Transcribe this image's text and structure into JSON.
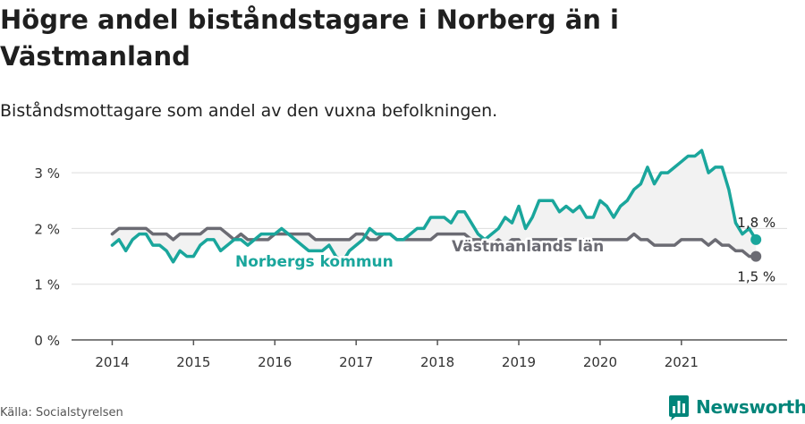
{
  "header": {
    "title": "Högre andel biståndstagare i Norberg än i Västmanland",
    "subtitle": "Biståndsmottagare som andel av den vuxna befolkningen."
  },
  "footer": {
    "source": "Källa: Socialstyrelsen",
    "brand": "Newsworthy"
  },
  "colors": {
    "norberg": "#1aa69c",
    "vastmanland": "#6b6b73",
    "gap_fill": "#f2f2f2",
    "brand": "#00857a"
  },
  "chart_data": {
    "type": "line",
    "ylim": [
      0,
      3.5
    ],
    "yticks": [
      0,
      1,
      2,
      3
    ],
    "ytick_labels": [
      "0 %",
      "1 %",
      "2 %",
      "3 %"
    ],
    "xlim": [
      2013.5,
      2022.3
    ],
    "xticks": [
      2014,
      2015,
      2016,
      2017,
      2018,
      2019,
      2020,
      2021
    ],
    "xtick_labels": [
      "2014",
      "2015",
      "2016",
      "2017",
      "2018",
      "2019",
      "2020",
      "2021"
    ],
    "grid": true,
    "series": [
      {
        "name": "Norbergs kommun",
        "color": "#1aa69c",
        "end_label": "1,8 %",
        "points": [
          [
            2014.0,
            1.7
          ],
          [
            2014.083,
            1.8
          ],
          [
            2014.167,
            1.6
          ],
          [
            2014.25,
            1.8
          ],
          [
            2014.333,
            1.9
          ],
          [
            2014.417,
            1.9
          ],
          [
            2014.5,
            1.7
          ],
          [
            2014.583,
            1.7
          ],
          [
            2014.667,
            1.6
          ],
          [
            2014.75,
            1.4
          ],
          [
            2014.833,
            1.6
          ],
          [
            2014.917,
            1.5
          ],
          [
            2015.0,
            1.5
          ],
          [
            2015.083,
            1.7
          ],
          [
            2015.167,
            1.8
          ],
          [
            2015.25,
            1.8
          ],
          [
            2015.333,
            1.6
          ],
          [
            2015.417,
            1.7
          ],
          [
            2015.5,
            1.8
          ],
          [
            2015.583,
            1.8
          ],
          [
            2015.667,
            1.7
          ],
          [
            2015.75,
            1.8
          ],
          [
            2015.833,
            1.9
          ],
          [
            2015.917,
            1.9
          ],
          [
            2016.0,
            1.9
          ],
          [
            2016.083,
            2.0
          ],
          [
            2016.167,
            1.9
          ],
          [
            2016.25,
            1.8
          ],
          [
            2016.333,
            1.7
          ],
          [
            2016.417,
            1.6
          ],
          [
            2016.5,
            1.6
          ],
          [
            2016.583,
            1.6
          ],
          [
            2016.667,
            1.7
          ],
          [
            2016.75,
            1.5
          ],
          [
            2016.833,
            1.4
          ],
          [
            2016.917,
            1.6
          ],
          [
            2017.0,
            1.7
          ],
          [
            2017.083,
            1.8
          ],
          [
            2017.167,
            2.0
          ],
          [
            2017.25,
            1.9
          ],
          [
            2017.333,
            1.9
          ],
          [
            2017.417,
            1.9
          ],
          [
            2017.5,
            1.8
          ],
          [
            2017.583,
            1.8
          ],
          [
            2017.667,
            1.9
          ],
          [
            2017.75,
            2.0
          ],
          [
            2017.833,
            2.0
          ],
          [
            2017.917,
            2.2
          ],
          [
            2018.0,
            2.2
          ],
          [
            2018.083,
            2.2
          ],
          [
            2018.167,
            2.1
          ],
          [
            2018.25,
            2.3
          ],
          [
            2018.333,
            2.3
          ],
          [
            2018.417,
            2.1
          ],
          [
            2018.5,
            1.9
          ],
          [
            2018.583,
            1.8
          ],
          [
            2018.667,
            1.9
          ],
          [
            2018.75,
            2.0
          ],
          [
            2018.833,
            2.2
          ],
          [
            2018.917,
            2.1
          ],
          [
            2019.0,
            2.4
          ],
          [
            2019.083,
            2.0
          ],
          [
            2019.167,
            2.2
          ],
          [
            2019.25,
            2.5
          ],
          [
            2019.333,
            2.5
          ],
          [
            2019.417,
            2.5
          ],
          [
            2019.5,
            2.3
          ],
          [
            2019.583,
            2.4
          ],
          [
            2019.667,
            2.3
          ],
          [
            2019.75,
            2.4
          ],
          [
            2019.833,
            2.2
          ],
          [
            2019.917,
            2.2
          ],
          [
            2020.0,
            2.5
          ],
          [
            2020.083,
            2.4
          ],
          [
            2020.167,
            2.2
          ],
          [
            2020.25,
            2.4
          ],
          [
            2020.333,
            2.5
          ],
          [
            2020.417,
            2.7
          ],
          [
            2020.5,
            2.8
          ],
          [
            2020.583,
            3.1
          ],
          [
            2020.667,
            2.8
          ],
          [
            2020.75,
            3.0
          ],
          [
            2020.833,
            3.0
          ],
          [
            2020.917,
            3.1
          ],
          [
            2021.0,
            3.2
          ],
          [
            2021.083,
            3.3
          ],
          [
            2021.167,
            3.3
          ],
          [
            2021.25,
            3.4
          ],
          [
            2021.333,
            3.0
          ],
          [
            2021.417,
            3.1
          ],
          [
            2021.5,
            3.1
          ],
          [
            2021.583,
            2.7
          ],
          [
            2021.667,
            2.1
          ],
          [
            2021.75,
            1.9
          ],
          [
            2021.833,
            2.0
          ],
          [
            2021.917,
            1.8
          ]
        ]
      },
      {
        "name": "Västmanlands län",
        "color": "#6b6b73",
        "end_label": "1,5 %",
        "points": [
          [
            2014.0,
            1.9
          ],
          [
            2014.083,
            2.0
          ],
          [
            2014.167,
            2.0
          ],
          [
            2014.25,
            2.0
          ],
          [
            2014.333,
            2.0
          ],
          [
            2014.417,
            2.0
          ],
          [
            2014.5,
            1.9
          ],
          [
            2014.583,
            1.9
          ],
          [
            2014.667,
            1.9
          ],
          [
            2014.75,
            1.8
          ],
          [
            2014.833,
            1.9
          ],
          [
            2014.917,
            1.9
          ],
          [
            2015.0,
            1.9
          ],
          [
            2015.083,
            1.9
          ],
          [
            2015.167,
            2.0
          ],
          [
            2015.25,
            2.0
          ],
          [
            2015.333,
            2.0
          ],
          [
            2015.417,
            1.9
          ],
          [
            2015.5,
            1.8
          ],
          [
            2015.583,
            1.9
          ],
          [
            2015.667,
            1.8
          ],
          [
            2015.75,
            1.8
          ],
          [
            2015.833,
            1.8
          ],
          [
            2015.917,
            1.8
          ],
          [
            2016.0,
            1.9
          ],
          [
            2016.083,
            1.9
          ],
          [
            2016.167,
            1.9
          ],
          [
            2016.25,
            1.9
          ],
          [
            2016.333,
            1.9
          ],
          [
            2016.417,
            1.9
          ],
          [
            2016.5,
            1.8
          ],
          [
            2016.583,
            1.8
          ],
          [
            2016.667,
            1.8
          ],
          [
            2016.75,
            1.8
          ],
          [
            2016.833,
            1.8
          ],
          [
            2016.917,
            1.8
          ],
          [
            2017.0,
            1.9
          ],
          [
            2017.083,
            1.9
          ],
          [
            2017.167,
            1.8
          ],
          [
            2017.25,
            1.8
          ],
          [
            2017.333,
            1.9
          ],
          [
            2017.417,
            1.9
          ],
          [
            2017.5,
            1.8
          ],
          [
            2017.583,
            1.8
          ],
          [
            2017.667,
            1.8
          ],
          [
            2017.75,
            1.8
          ],
          [
            2017.833,
            1.8
          ],
          [
            2017.917,
            1.8
          ],
          [
            2018.0,
            1.9
          ],
          [
            2018.083,
            1.9
          ],
          [
            2018.167,
            1.9
          ],
          [
            2018.25,
            1.9
          ],
          [
            2018.333,
            1.9
          ],
          [
            2018.417,
            1.8
          ],
          [
            2018.5,
            1.8
          ],
          [
            2018.583,
            1.8
          ],
          [
            2018.667,
            1.7
          ],
          [
            2018.75,
            1.8
          ],
          [
            2018.833,
            1.7
          ],
          [
            2018.917,
            1.8
          ],
          [
            2019.0,
            1.8
          ],
          [
            2019.083,
            1.6
          ],
          [
            2019.167,
            1.8
          ],
          [
            2019.25,
            1.8
          ],
          [
            2019.333,
            1.8
          ],
          [
            2019.417,
            1.8
          ],
          [
            2019.5,
            1.8
          ],
          [
            2019.583,
            1.8
          ],
          [
            2019.667,
            1.8
          ],
          [
            2019.75,
            1.8
          ],
          [
            2019.833,
            1.8
          ],
          [
            2019.917,
            1.8
          ],
          [
            2020.0,
            1.8
          ],
          [
            2020.083,
            1.8
          ],
          [
            2020.167,
            1.8
          ],
          [
            2020.25,
            1.8
          ],
          [
            2020.333,
            1.8
          ],
          [
            2020.417,
            1.9
          ],
          [
            2020.5,
            1.8
          ],
          [
            2020.583,
            1.8
          ],
          [
            2020.667,
            1.7
          ],
          [
            2020.75,
            1.7
          ],
          [
            2020.833,
            1.7
          ],
          [
            2020.917,
            1.7
          ],
          [
            2021.0,
            1.8
          ],
          [
            2021.083,
            1.8
          ],
          [
            2021.167,
            1.8
          ],
          [
            2021.25,
            1.8
          ],
          [
            2021.333,
            1.7
          ],
          [
            2021.417,
            1.8
          ],
          [
            2021.5,
            1.7
          ],
          [
            2021.583,
            1.7
          ],
          [
            2021.667,
            1.6
          ],
          [
            2021.75,
            1.6
          ],
          [
            2021.833,
            1.5
          ],
          [
            2021.917,
            1.5
          ]
        ]
      }
    ]
  }
}
